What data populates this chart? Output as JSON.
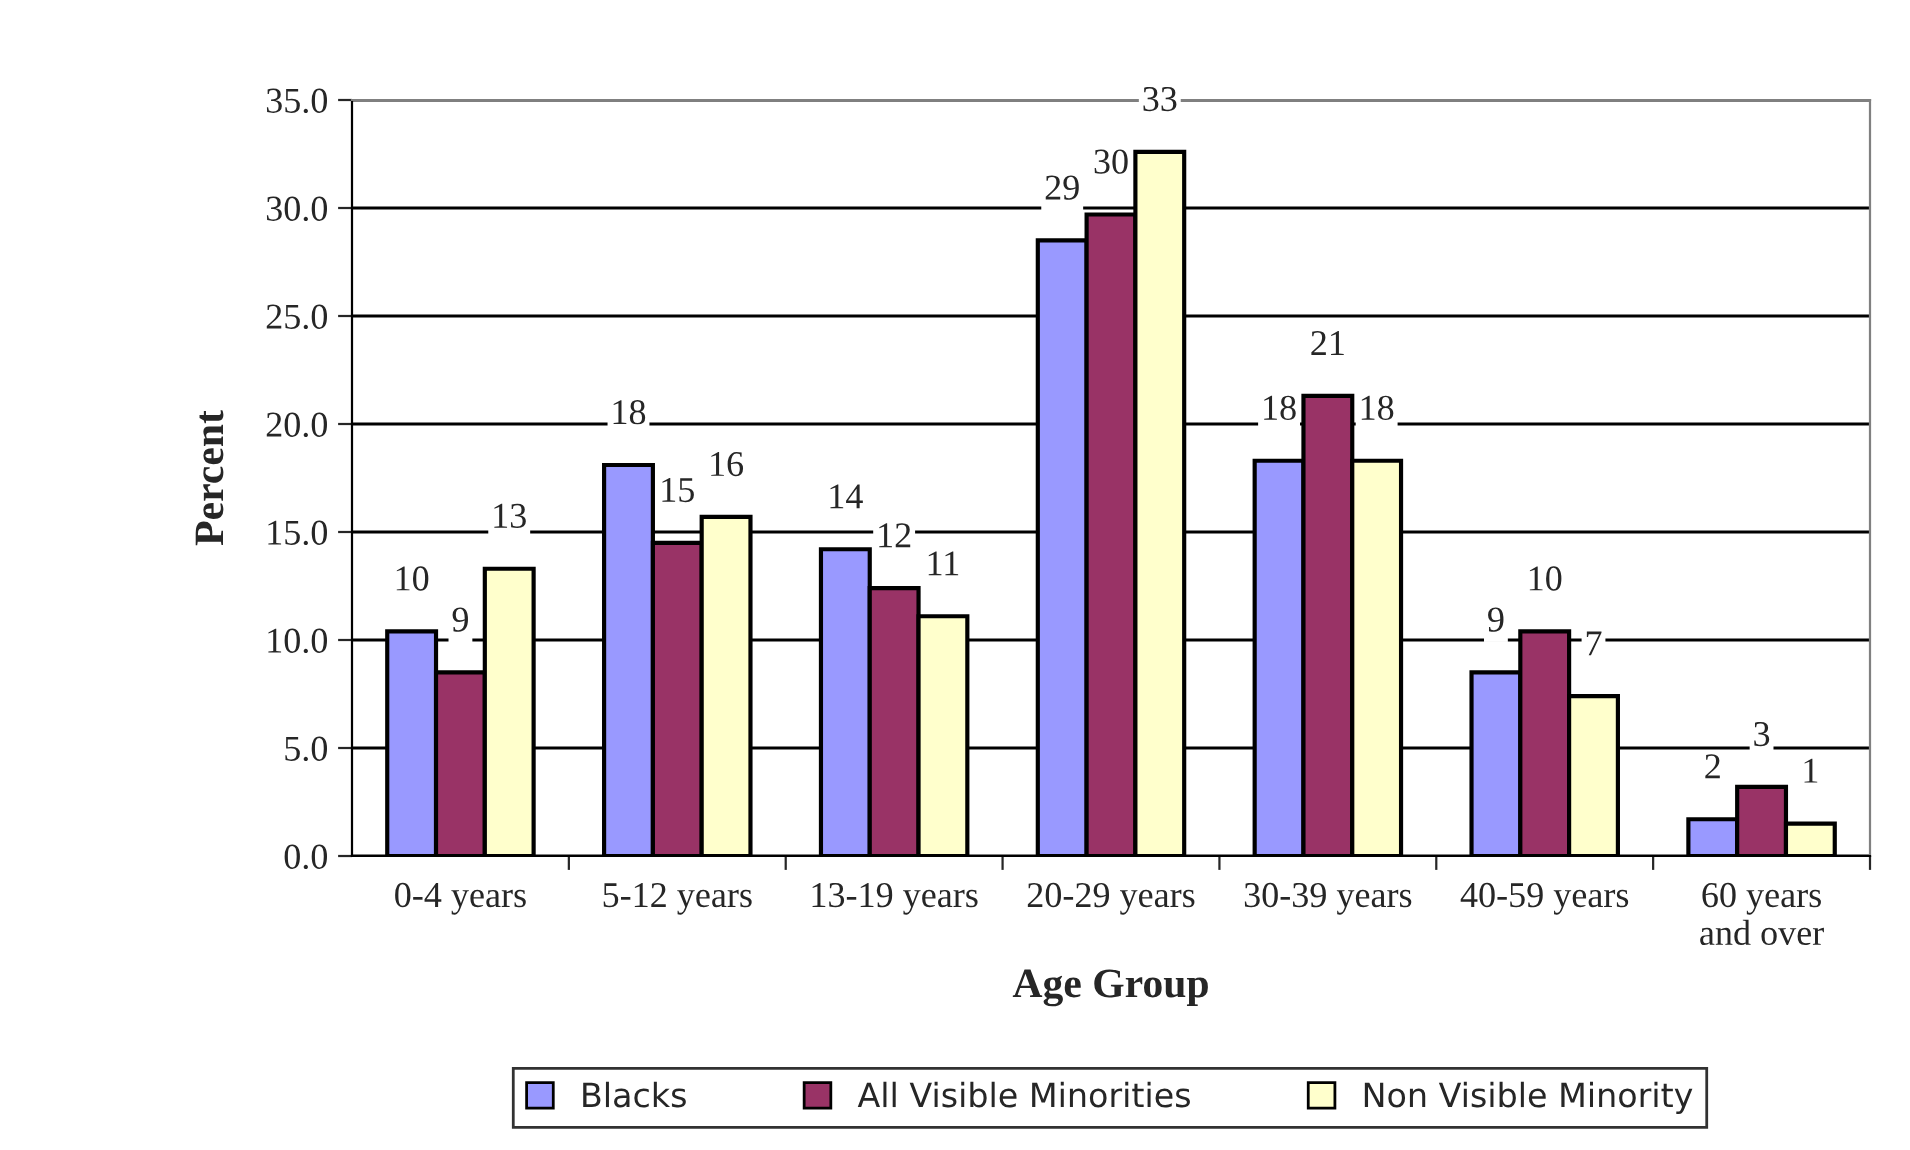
{
  "chart_data": {
    "type": "bar",
    "xlabel": "Age Group",
    "ylabel": "Percent",
    "categories": [
      "0-4 years",
      "5-12 years",
      "13-19 years",
      "20-29 years",
      "30-39 years",
      "40-59 years",
      "60 years\nand over"
    ],
    "series": [
      {
        "name": "Blacks",
        "color": "#9999ff",
        "values": [
          10.4,
          18.1,
          14.2,
          28.5,
          18.3,
          8.5,
          1.7
        ],
        "value_labels": [
          "10",
          "18",
          "14",
          "29",
          "18",
          "9",
          "2"
        ]
      },
      {
        "name": "All Visible Minorities",
        "color": "#993366",
        "values": [
          8.5,
          14.5,
          12.4,
          29.7,
          21.3,
          10.4,
          3.2
        ],
        "value_labels": [
          "9",
          "15",
          "12",
          "30",
          "21",
          "10",
          "3"
        ]
      },
      {
        "name": "Non Visible Minority",
        "color": "#ffffcc",
        "values": [
          13.3,
          15.7,
          11.1,
          32.6,
          18.3,
          7.4,
          1.5
        ],
        "value_labels": [
          "13",
          "16",
          "11",
          "33",
          "18",
          "7",
          "1"
        ]
      }
    ],
    "ylim": [
      0,
      35
    ],
    "yticks": [
      {
        "value": 0,
        "label": "0.0"
      },
      {
        "value": 5,
        "label": "5.0"
      },
      {
        "value": 10,
        "label": "10.0"
      },
      {
        "value": 15,
        "label": "15.0"
      },
      {
        "value": 20,
        "label": "20.0"
      },
      {
        "value": 25,
        "label": "25.0"
      },
      {
        "value": 30,
        "label": "30.0"
      },
      {
        "value": 35,
        "label": "35.0"
      }
    ],
    "grid": "y",
    "legend": "bottom"
  }
}
